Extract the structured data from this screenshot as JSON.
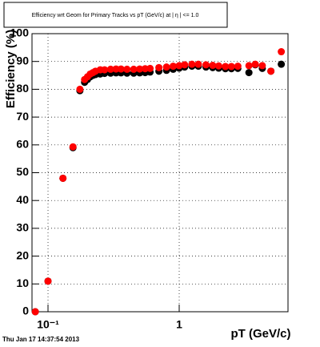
{
  "chart_data": {
    "type": "scatter",
    "title": "Efficiency wrt Geom for Primary Tracks vs pT (GeV/c) at |  η | <= 1.0",
    "x_label": "pT (GeV/c)",
    "y_label": "Efficiency (%)",
    "log_x": true,
    "xlim": [
      0.0755,
      6.75
    ],
    "xticks": [
      {
        "value": 0.1,
        "label": "10⁻¹"
      },
      1
    ],
    "ylim": [
      0,
      100
    ],
    "yticks": [
      0,
      10,
      20,
      30,
      40,
      50,
      60,
      70,
      80,
      90,
      100
    ],
    "grid": true,
    "x": [
      0.08,
      0.1,
      0.13,
      0.155,
      0.175,
      0.19,
      0.2,
      0.21,
      0.22,
      0.23,
      0.25,
      0.27,
      0.3,
      0.33,
      0.36,
      0.4,
      0.45,
      0.5,
      0.55,
      0.6,
      0.7,
      0.8,
      0.9,
      1.0,
      1.1,
      1.25,
      1.4,
      1.6,
      1.8,
      2.0,
      2.25,
      2.5,
      2.8,
      3.4,
      3.8,
      4.3,
      5.0,
      6.0
    ],
    "series": [
      {
        "color": "#000000",
        "values": [
          0,
          11,
          48,
          59,
          79.5,
          82.5,
          83.5,
          84.5,
          85,
          85.3,
          85.5,
          85.7,
          85.8,
          85.9,
          85.9,
          85.8,
          85.8,
          85.9,
          86,
          86.2,
          86.5,
          86.8,
          87.2,
          87.6,
          88,
          88.3,
          88.3,
          88,
          87.8,
          87.6,
          87.4,
          87.4,
          87.5,
          86,
          88.8,
          87.5,
          86.5,
          89
        ]
      },
      {
        "color": "#ff0000",
        "values": [
          0,
          11,
          48,
          59.3,
          80,
          83.5,
          84.5,
          85.5,
          86,
          86.5,
          87,
          87,
          87.2,
          87.3,
          87.3,
          87.2,
          87.2,
          87.3,
          87.4,
          87.5,
          87.8,
          88,
          88.3,
          88.5,
          88.8,
          89,
          89,
          88.8,
          88.6,
          88.4,
          88.2,
          88.2,
          88.3,
          88.5,
          89,
          88.5,
          86.5,
          93.5
        ]
      }
    ]
  },
  "footer": "Thu Jan 17 14:37:54 2013"
}
